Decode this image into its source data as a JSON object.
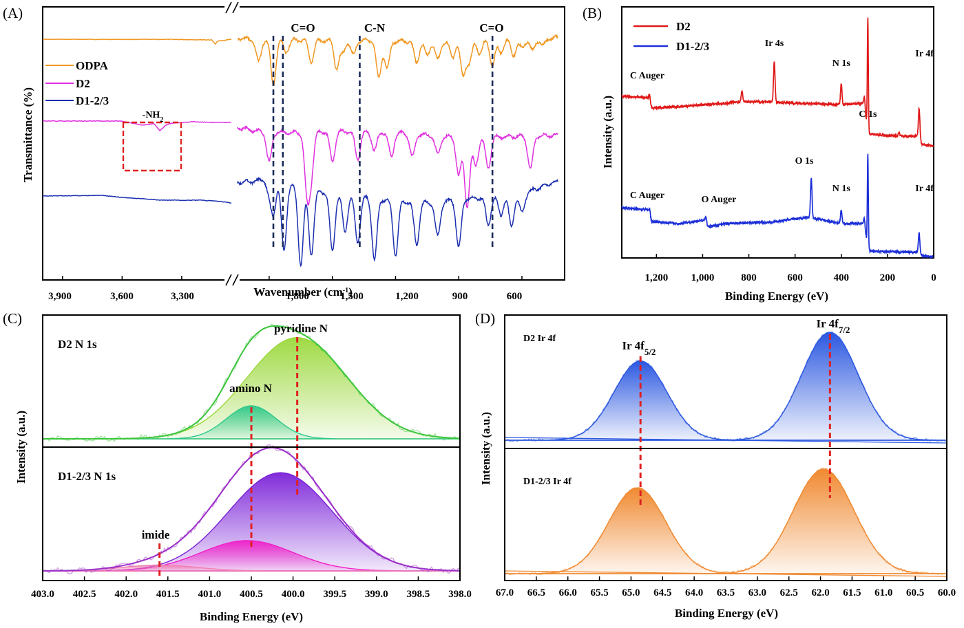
{
  "chart_data": [
    {
      "id": "A",
      "type": "line",
      "panel_label": "(A)",
      "xlabel": "Wavenumber (cm",
      "xlabel_sup": "-1",
      "xlabel_close": ")",
      "ylabel": "Transmittance (%)",
      "x_ticks": [
        "3,900",
        "3,600",
        "3,300",
        "1,800",
        "1,500",
        "1,200",
        "900",
        "600"
      ],
      "x_segments": [
        {
          "from": 4000,
          "to": 3050
        },
        {
          "from": 1950,
          "to": 430
        }
      ],
      "legend": [
        {
          "name": "ODPA",
          "color": "#f0961e"
        },
        {
          "name": "D2",
          "color": "#e030e0"
        },
        {
          "name": "D1-2/3",
          "color": "#1c2fb0"
        }
      ],
      "markers": [
        {
          "label": "C=O",
          "x": [
            1780,
            1735
          ]
        },
        {
          "label": "C-N",
          "x": [
            1370
          ]
        },
        {
          "label": "C=O",
          "x": [
            740
          ]
        }
      ],
      "box_label": "-NH",
      "box_label_sub": "2",
      "box_range": [
        3560,
        3280
      ],
      "series": [
        {
          "name": "ODPA",
          "color": "#f0961e",
          "offset": 0,
          "flat": [
            [
              4000,
              0.2
            ],
            [
              3350,
              0.3
            ],
            [
              3150,
              1
            ],
            [
              3130,
              7
            ],
            [
              3120,
              3
            ],
            [
              3050,
              0
            ]
          ],
          "peaks": [
            [
              1850,
              15
            ],
            [
              1780,
              30
            ],
            [
              1720,
              8
            ],
            [
              1600,
              14
            ],
            [
              1480,
              18
            ],
            [
              1450,
              8
            ],
            [
              1400,
              10
            ],
            [
              1280,
              25
            ],
            [
              1240,
              18
            ],
            [
              1100,
              14
            ],
            [
              1050,
              9
            ],
            [
              1000,
              12
            ],
            [
              930,
              10
            ],
            [
              880,
              22
            ],
            [
              850,
              14
            ],
            [
              800,
              8
            ],
            [
              740,
              16
            ],
            [
              700,
              8
            ],
            [
              640,
              10
            ],
            [
              600,
              6
            ],
            [
              550,
              8
            ],
            [
              500,
              5
            ]
          ],
          "baseline": [
            [
              1950,
              0
            ],
            [
              1900,
              2
            ],
            [
              1600,
              4
            ],
            [
              1400,
              3
            ],
            [
              1200,
              5
            ],
            [
              900,
              6
            ],
            [
              600,
              2
            ],
            [
              450,
              0
            ]
          ]
        },
        {
          "name": "D2",
          "color": "#e030e0",
          "offset": 120,
          "flat": [
            [
              4000,
              0
            ],
            [
              3600,
              0
            ],
            [
              3550,
              3
            ],
            [
              3500,
              6
            ],
            [
              3440,
              4
            ],
            [
              3410,
              14
            ],
            [
              3380,
              6
            ],
            [
              3350,
              3
            ],
            [
              3250,
              1
            ],
            [
              3150,
              2
            ],
            [
              3050,
              2
            ]
          ],
          "peaks": [
            [
              1800,
              20
            ],
            [
              1620,
              40
            ],
            [
              1600,
              25
            ],
            [
              1500,
              20
            ],
            [
              1380,
              18
            ],
            [
              1300,
              12
            ],
            [
              1220,
              16
            ],
            [
              1120,
              15
            ],
            [
              1000,
              12
            ],
            [
              900,
              25
            ],
            [
              860,
              45
            ],
            [
              820,
              18
            ],
            [
              760,
              20
            ],
            [
              560,
              22
            ]
          ],
          "baseline": [
            [
              1950,
              0
            ],
            [
              1850,
              6
            ],
            [
              1700,
              8
            ],
            [
              1500,
              6
            ],
            [
              1200,
              8
            ],
            [
              950,
              14
            ],
            [
              800,
              16
            ],
            [
              700,
              14
            ],
            [
              450,
              12
            ]
          ]
        },
        {
          "name": "D1-2/3",
          "color": "#1c2fb0",
          "offset": 200,
          "flat": [
            [
              4000,
              0
            ],
            [
              3700,
              -1
            ],
            [
              3600,
              2
            ],
            [
              3400,
              6
            ],
            [
              3200,
              6
            ],
            [
              3100,
              8
            ],
            [
              3050,
              10
            ]
          ],
          "peaks": [
            [
              1800,
              10
            ],
            [
              1780,
              22
            ],
            [
              1730,
              45
            ],
            [
              1650,
              50
            ],
            [
              1600,
              42
            ],
            [
              1500,
              38
            ],
            [
              1440,
              24
            ],
            [
              1380,
              30
            ],
            [
              1300,
              40
            ],
            [
              1200,
              35
            ],
            [
              1100,
              28
            ],
            [
              1000,
              22
            ],
            [
              900,
              32
            ],
            [
              760,
              18
            ],
            [
              700,
              12
            ],
            [
              650,
              20
            ],
            [
              600,
              12
            ]
          ],
          "baseline": [
            [
              1950,
              0
            ],
            [
              1850,
              -2
            ],
            [
              1800,
              -8
            ],
            [
              1650,
              10
            ],
            [
              1400,
              20
            ],
            [
              1200,
              28
            ],
            [
              1000,
              30
            ],
            [
              900,
              24
            ],
            [
              750,
              22
            ],
            [
              600,
              18
            ],
            [
              450,
              0
            ]
          ]
        }
      ]
    },
    {
      "id": "B",
      "type": "line",
      "panel_label": "(B)",
      "xlabel": "Binding Energy (eV)",
      "ylabel": "Intensity (a.u.)",
      "xlim": [
        1350,
        0
      ],
      "x_ticks": [
        {
          "v": 1200,
          "t": "1,200"
        },
        {
          "v": 1000,
          "t": "1,000"
        },
        {
          "v": 800,
          "t": "800"
        },
        {
          "v": 600,
          "t": "600"
        },
        {
          "v": 400,
          "t": "400"
        },
        {
          "v": 200,
          "t": "200"
        },
        {
          "v": 0,
          "t": "0"
        }
      ],
      "legend": [
        {
          "name": "D2",
          "color": "#e01818"
        },
        {
          "name": "D1-2/3",
          "color": "#1c2fd8"
        }
      ],
      "series": [
        {
          "name": "D2",
          "color": "#e01818",
          "base": [
            [
              1350,
              140
            ],
            [
              1240,
              142
            ],
            [
              1220,
              157
            ],
            [
              1100,
              155
            ],
            [
              900,
              150
            ],
            [
              840,
              148
            ],
            [
              700,
              148
            ],
            [
              600,
              150
            ],
            [
              400,
              152
            ],
            [
              300,
              150
            ],
            [
              285,
              195
            ],
            [
              150,
              198
            ],
            [
              70,
              198
            ],
            [
              50,
              210
            ],
            [
              0,
              212
            ]
          ],
          "peaks": [
            [
              1230,
              12
            ],
            [
              830,
              16
            ],
            [
              690,
              60
            ],
            [
              400,
              30
            ],
            [
              300,
              10
            ],
            [
              285,
              170
            ],
            [
              150,
              6
            ],
            [
              63,
              45
            ]
          ]
        },
        {
          "name": "D1-2/3",
          "color": "#1c2fd8",
          "base": [
            [
              1350,
              302
            ],
            [
              1240,
              305
            ],
            [
              1220,
              322
            ],
            [
              1100,
              325
            ],
            [
              990,
              320
            ],
            [
              980,
              330
            ],
            [
              900,
              325
            ],
            [
              700,
              323
            ],
            [
              600,
              318
            ],
            [
              540,
              316
            ],
            [
              400,
              325
            ],
            [
              300,
              325
            ],
            [
              285,
              365
            ],
            [
              150,
              366
            ],
            [
              70,
              367
            ],
            [
              50,
              372
            ],
            [
              0,
              373
            ]
          ],
          "peaks": [
            [
              1230,
              10
            ],
            [
              985,
              8
            ],
            [
              530,
              58
            ],
            [
              400,
              20
            ],
            [
              300,
              8
            ],
            [
              285,
              140
            ],
            [
              63,
              30
            ]
          ]
        }
      ],
      "annotations": [
        {
          "text": "C Auger",
          "v": 1240,
          "series": 0,
          "dy": -28
        },
        {
          "text": "Ir 4s",
          "v": 690,
          "series": 0,
          "dy": -75
        },
        {
          "text": "N 1s",
          "v": 400,
          "series": 0,
          "dy": -46
        },
        {
          "text": "C 1s",
          "v": 285,
          "series": 0,
          "dy": -182
        },
        {
          "text": "Ir 4f",
          "v": 40,
          "series": 0,
          "dy": -60
        },
        {
          "text": "C Auger",
          "v": 1240,
          "series": 1,
          "dy": -30
        },
        {
          "text": "O Auger",
          "v": 930,
          "series": 1,
          "dy": -24
        },
        {
          "text": "O 1s",
          "v": 560,
          "series": 1,
          "dy": -80
        },
        {
          "text": "N 1s",
          "v": 400,
          "series": 1,
          "dy": -40
        },
        {
          "text": "C 1s",
          "v": 285,
          "series": 1,
          "dy": -148
        },
        {
          "text": "Ir 4f",
          "v": 40,
          "series": 1,
          "dy": -40
        }
      ]
    },
    {
      "id": "C",
      "type": "area",
      "panel_label": "(C)",
      "xlabel": "Binding Energy (eV)",
      "ylabel": "Intensity (a.u.)",
      "xlim": [
        403.0,
        398.0
      ],
      "x_ticks": [
        "403.0",
        "402.5",
        "402.0",
        "401.5",
        "401.0",
        "400.5",
        "400.0",
        "399.5",
        "399.0",
        "398.5",
        "398.0"
      ],
      "subpanels": [
        {
          "title": "D2 N 1s",
          "envelope_color": "#3cc63c",
          "components": [
            {
              "center": 399.95,
              "width": 0.6,
              "height": 0.92,
              "color": "#9ad83a"
            },
            {
              "center": 400.5,
              "width": 0.3,
              "height": 0.3,
              "color": "#2cc88a"
            }
          ],
          "annotations": [
            {
              "text": "pyridine N",
              "v": 399.95
            },
            {
              "text": "amino N",
              "v": 400.5
            }
          ]
        },
        {
          "title": "D1-2/3 N 1s",
          "envelope_color": "#9b30c8",
          "components": [
            {
              "center": 400.15,
              "width": 0.62,
              "height": 0.84,
              "color": "#7a20d8"
            },
            {
              "center": 400.55,
              "width": 0.55,
              "height": 0.26,
              "color": "#f020c8"
            },
            {
              "center": 401.6,
              "width": 0.45,
              "height": 0.05,
              "color": "#f07fb0"
            }
          ],
          "annotations": [
            {
              "text": "imide",
              "v": 401.6
            }
          ]
        }
      ]
    },
    {
      "id": "D",
      "type": "area",
      "panel_label": "(D)",
      "xlabel": "Binding Energy (eV)",
      "ylabel": "Intensity (a.u.)",
      "xlim": [
        67.0,
        60.0
      ],
      "x_ticks": [
        "67.0",
        "66.5",
        "66.0",
        "65.5",
        "65.0",
        "64.5",
        "64.0",
        "63.5",
        "63.0",
        "62.5",
        "62.0",
        "61.5",
        "61.0",
        "60.5",
        "60.0"
      ],
      "subpanels": [
        {
          "title": "D2 Ir 4f",
          "color": "#2c58e0",
          "components": [
            {
              "center": 64.85,
              "width": 0.42,
              "height": 0.72
            },
            {
              "center": 61.85,
              "width": 0.45,
              "height": 0.98
            }
          ]
        },
        {
          "title": "D1-2/3 Ir 4f",
          "color": "#f08a32",
          "components": [
            {
              "center": 64.9,
              "width": 0.45,
              "height": 0.78
            },
            {
              "center": 61.95,
              "width": 0.48,
              "height": 0.95
            }
          ]
        }
      ],
      "annotations": [
        {
          "text": "Ir 4f",
          "sub": "5/2",
          "v": 64.85
        },
        {
          "text": "Ir 4f",
          "sub": "7/2",
          "v": 61.85
        }
      ]
    }
  ]
}
